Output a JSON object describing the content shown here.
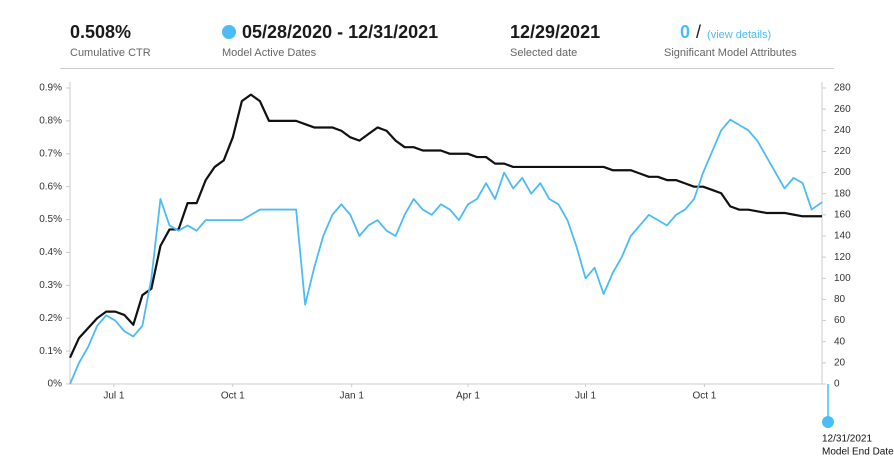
{
  "header": {
    "ctr": {
      "value": "0.508%",
      "label": "Cumulative CTR"
    },
    "dates": {
      "value": "05/28/2020 - 12/31/2021",
      "label": "Model Active Dates"
    },
    "selected": {
      "value": "12/29/2021",
      "label": "Selected date"
    },
    "attributes": {
      "value": "0",
      "separator": "/",
      "link": "(view details)",
      "label": "Significant Model Attributes"
    }
  },
  "chart_data": {
    "type": "line",
    "x": [
      0,
      7,
      14,
      21,
      28,
      35,
      42,
      49,
      56,
      63,
      70,
      77,
      84,
      91,
      98,
      105,
      112,
      119,
      126,
      133,
      140,
      147,
      154,
      161,
      168,
      175,
      182,
      189,
      196,
      203,
      210,
      217,
      224,
      231,
      238,
      245,
      252,
      259,
      266,
      273,
      280,
      287,
      294,
      301,
      308,
      315,
      322,
      329,
      336,
      343,
      350,
      357,
      364,
      371,
      378,
      385,
      392,
      399,
      406,
      413,
      420,
      427,
      434,
      441,
      448,
      455,
      462,
      469,
      476,
      483,
      490,
      497,
      504,
      511,
      518,
      525,
      532,
      539,
      546,
      553,
      560,
      567,
      574,
      582
    ],
    "xlim": [
      0,
      582
    ],
    "xticks": [
      {
        "value": 34,
        "label": "Jul 1"
      },
      {
        "value": 126,
        "label": "Oct 1"
      },
      {
        "value": 218,
        "label": "Jan 1"
      },
      {
        "value": 308,
        "label": "Apr 1"
      },
      {
        "value": 399,
        "label": "Jul 1"
      },
      {
        "value": 491,
        "label": "Oct 1"
      }
    ],
    "ylim": [
      0,
      0.9
    ],
    "yticks": [
      {
        "value": 0,
        "label": "0%"
      },
      {
        "value": 0.1,
        "label": "0.1%"
      },
      {
        "value": 0.2,
        "label": "0.2%"
      },
      {
        "value": 0.3,
        "label": "0.3%"
      },
      {
        "value": 0.4,
        "label": "0.4%"
      },
      {
        "value": 0.5,
        "label": "0.5%"
      },
      {
        "value": 0.6,
        "label": "0.6%"
      },
      {
        "value": 0.7,
        "label": "0.7%"
      },
      {
        "value": 0.8,
        "label": "0.8%"
      },
      {
        "value": 0.9,
        "label": "0.9%"
      }
    ],
    "y2lim": [
      0,
      280
    ],
    "y2ticks": [
      0,
      20,
      40,
      60,
      80,
      100,
      120,
      140,
      160,
      180,
      200,
      220,
      240,
      260,
      280
    ],
    "series": [
      {
        "color": "#111111",
        "values": [
          0.08,
          0.14,
          0.17,
          0.2,
          0.22,
          0.22,
          0.21,
          0.18,
          0.27,
          0.29,
          0.42,
          0.47,
          0.47,
          0.55,
          0.55,
          0.62,
          0.66,
          0.68,
          0.75,
          0.86,
          0.88,
          0.86,
          0.8,
          0.8,
          0.8,
          0.8,
          0.79,
          0.78,
          0.78,
          0.78,
          0.77,
          0.75,
          0.74,
          0.76,
          0.78,
          0.77,
          0.74,
          0.72,
          0.72,
          0.71,
          0.71,
          0.71,
          0.7,
          0.7,
          0.7,
          0.69,
          0.69,
          0.67,
          0.67,
          0.66,
          0.66,
          0.66,
          0.66,
          0.66,
          0.66,
          0.66,
          0.66,
          0.66,
          0.66,
          0.66,
          0.65,
          0.65,
          0.65,
          0.64,
          0.63,
          0.63,
          0.62,
          0.62,
          0.61,
          0.6,
          0.6,
          0.59,
          0.58,
          0.54,
          0.53,
          0.53,
          0.525,
          0.52,
          0.52,
          0.52,
          0.515,
          0.51,
          0.51,
          0.51
        ]
      },
      {
        "color": "#4bbcf5",
        "axis": "y2",
        "values": [
          0,
          20,
          35,
          55,
          65,
          60,
          50,
          45,
          55,
          100,
          175,
          150,
          145,
          150,
          145,
          155,
          155,
          155,
          155,
          155,
          160,
          165,
          165,
          165,
          165,
          165,
          75,
          110,
          140,
          160,
          170,
          160,
          140,
          150,
          155,
          145,
          140,
          160,
          175,
          165,
          160,
          170,
          165,
          155,
          170,
          175,
          190,
          175,
          200,
          185,
          195,
          180,
          190,
          175,
          170,
          155,
          130,
          100,
          110,
          85,
          105,
          120,
          140,
          150,
          160,
          155,
          150,
          160,
          165,
          175,
          200,
          220,
          240,
          250,
          245,
          240,
          230,
          215,
          200,
          185,
          195,
          190,
          165,
          172
        ]
      }
    ],
    "end_marker": {
      "date": "12/31/2021",
      "label": "Model End Date"
    }
  }
}
